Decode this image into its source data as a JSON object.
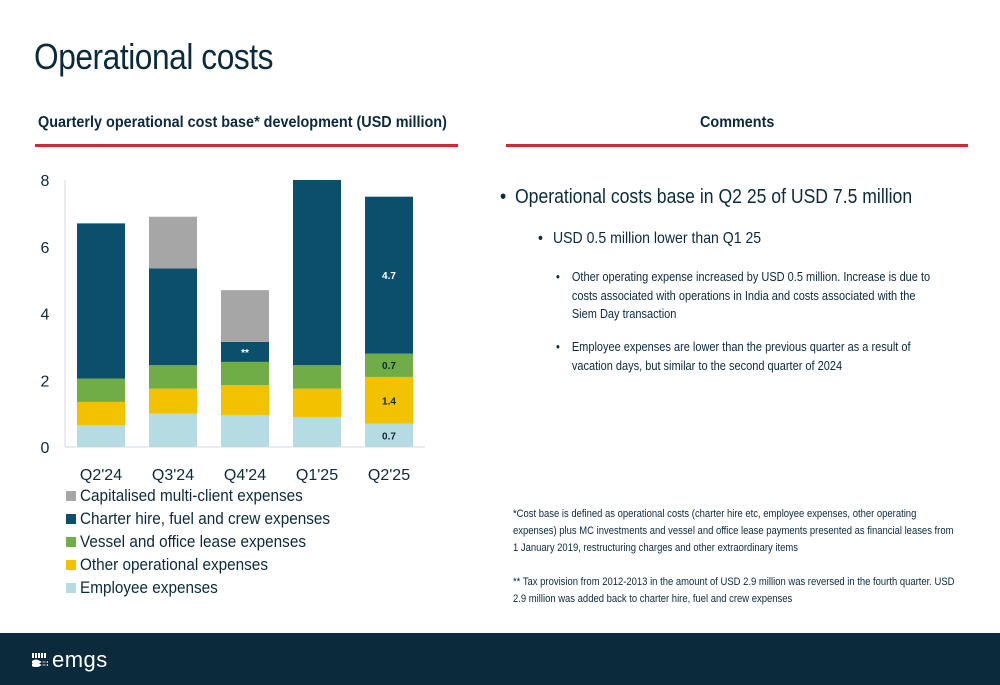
{
  "page": {
    "title": "Operational costs",
    "chart_heading": "Quarterly operational cost base* development (USD million)",
    "comments_heading": "Comments"
  },
  "colors": {
    "capitalised": "#a6a6a6",
    "charter": "#0b4f6c",
    "vessel": "#70ad47",
    "other": "#f2c200",
    "employee": "#b4dce2",
    "accent_rule": "#d2292f",
    "navy": "#0b2a3c"
  },
  "chart_data": {
    "type": "bar",
    "stacked": true,
    "title": "Quarterly operational cost base* development (USD million)",
    "categories": [
      "Q2'24",
      "Q3'24",
      "Q4'24",
      "Q1'25",
      "Q2'25"
    ],
    "ylim": [
      0,
      8
    ],
    "yticks": [
      0,
      2,
      4,
      6,
      8
    ],
    "grid": false,
    "legend_position": "bottom-left",
    "series": [
      {
        "name": "Employee expenses",
        "color": "#b4dce2",
        "values": [
          0.65,
          1.0,
          0.95,
          0.9,
          0.7
        ]
      },
      {
        "name": "Other operational expenses",
        "color": "#f2c200",
        "values": [
          0.7,
          0.75,
          0.9,
          0.85,
          1.4
        ]
      },
      {
        "name": "Vessel and office lease expenses",
        "color": "#70ad47",
        "values": [
          0.7,
          0.7,
          0.7,
          0.7,
          0.7
        ]
      },
      {
        "name": "Charter hire, fuel and crew expenses",
        "color": "#0b4f6c",
        "values": [
          4.65,
          2.9,
          0.6,
          5.55,
          4.7
        ]
      },
      {
        "name": "Capitalised multi-client expenses",
        "color": "#a6a6a6",
        "values": [
          0,
          1.55,
          1.55,
          0,
          0
        ]
      }
    ],
    "data_labels": [
      {
        "category": "Q4'24",
        "series": "Charter hire, fuel and crew expenses",
        "text": "**"
      },
      {
        "category": "Q2'25",
        "series": "Employee expenses",
        "text": "0.7"
      },
      {
        "category": "Q2'25",
        "series": "Other operational expenses",
        "text": "1.4"
      },
      {
        "category": "Q2'25",
        "series": "Vessel and office lease expenses",
        "text": "0.7"
      },
      {
        "category": "Q2'25",
        "series": "Charter hire, fuel and crew expenses",
        "text": "4.7"
      }
    ],
    "legend_order": [
      "Capitalised multi-client expenses",
      "Charter hire, fuel and crew expenses",
      "Vessel and office lease expenses",
      "Other operational expenses",
      "Employee expenses"
    ]
  },
  "legend": [
    {
      "label": "Capitalised multi-client expenses",
      "color": "#a6a6a6"
    },
    {
      "label": "Charter hire, fuel and crew expenses",
      "color": "#0b4f6c"
    },
    {
      "label": "Vessel and office lease expenses",
      "color": "#70ad47"
    },
    {
      "label": "Other operational expenses",
      "color": "#f2c200"
    },
    {
      "label": "Employee expenses",
      "color": "#b4dce2"
    }
  ],
  "comments": {
    "l1": "Operational costs base in Q2 25 of USD 7.5 million",
    "l2": "USD 0.5 million lower than Q1 25",
    "l3a": "Other operating expense increased by USD 0.5 million. Increase is due to costs associated with operations in India and costs associated with the Siem Day transaction",
    "l3b": "Employee expenses are lower than the previous quarter as a result of vacation days, but similar to the second quarter of 2024"
  },
  "footnotes": {
    "f1": "*Cost base is defined as operational costs (charter hire etc, employee expenses, other operating expenses) plus MC investments and vessel and office lease payments presented as financial leases from 1 January 2019, restructuring charges and other extraordinary items",
    "f2": "** Tax provision from 2012-2013 in the amount of USD 2.9 million was reversed in the fourth quarter. USD 2.9 million was added back to charter hire, fuel and crew expenses"
  },
  "footer": {
    "logo_text": "emgs",
    "logo_icon": "emgs-logo-icon"
  }
}
